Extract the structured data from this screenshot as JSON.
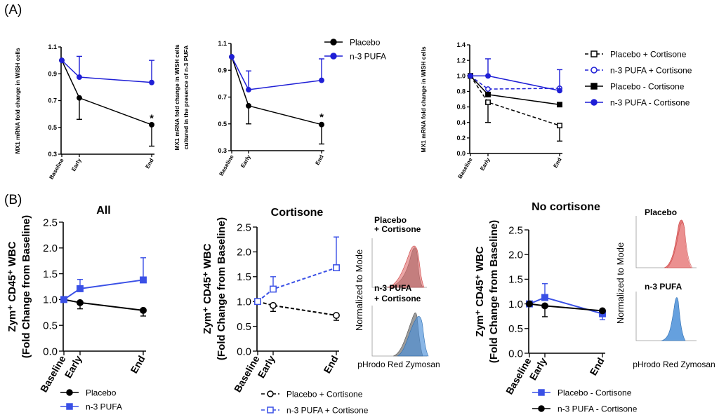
{
  "panel_labels": {
    "a": "(A)",
    "b": "(B)"
  },
  "colors": {
    "placebo": "#000000",
    "pufa": "#1f1fd6",
    "pufa_light": "#3a50e6",
    "hist_red": "#e06a6a",
    "hist_grey": "#8a8a8a",
    "hist_blue": "#4a8fd8"
  },
  "chart_data": [
    {
      "id": "A1",
      "type": "line",
      "ylabel": "MX1 mRNA fold change in WISH cells",
      "categories": [
        "Baseline",
        "Early",
        "End"
      ],
      "ylim": [
        0.3,
        1.1
      ],
      "yticks": [
        "0.3",
        "0.5",
        "0.7",
        "0.9",
        "1.1"
      ],
      "series": [
        {
          "name": "",
          "color": "#000000",
          "marker": "circle",
          "fill": true,
          "dashed": false,
          "values": [
            1.0,
            0.72,
            0.52
          ],
          "err_hi": [
            null,
            null,
            null
          ],
          "err_lo": [
            null,
            0.56,
            0.36
          ]
        },
        {
          "name": "",
          "color": "#1f1fd6",
          "marker": "circle",
          "fill": true,
          "dashed": false,
          "values": [
            1.0,
            0.875,
            0.835
          ],
          "err_hi": [
            null,
            1.03,
            1.0
          ],
          "err_lo": [
            null,
            null,
            null
          ]
        }
      ],
      "annotations": [
        {
          "text": "*",
          "cat": 2,
          "y": 0.575
        }
      ]
    },
    {
      "id": "A2",
      "type": "line",
      "ylabel": "MX1 mRNA fold change in WISH cells cultured in the presence of n-3 PUFA",
      "categories": [
        "Baseline",
        "Early",
        "End"
      ],
      "ylim": [
        0.3,
        1.1
      ],
      "yticks": [
        "0.3",
        "0.5",
        "0.7",
        "0.9",
        "1.1"
      ],
      "series": [
        {
          "name": "Placebo",
          "color": "#000000",
          "marker": "circle",
          "fill": true,
          "dashed": false,
          "values": [
            1.0,
            0.635,
            0.495
          ],
          "err_hi": [
            null,
            null,
            null
          ],
          "err_lo": [
            null,
            0.5,
            0.35
          ]
        },
        {
          "name": "n-3 PUFA",
          "color": "#1f1fd6",
          "marker": "circle",
          "fill": true,
          "dashed": false,
          "values": [
            1.0,
            0.755,
            0.825
          ],
          "err_hi": [
            null,
            0.895,
            0.985
          ],
          "err_lo": [
            null,
            null,
            null
          ]
        }
      ],
      "annotations": [
        {
          "text": "*",
          "cat": 2,
          "y": 0.555
        }
      ]
    },
    {
      "id": "A3",
      "type": "line",
      "ylabel": "MX1 mRNA fold change in WISH cells",
      "categories": [
        "Baseline",
        "Early",
        "End"
      ],
      "ylim": [
        0.0,
        1.4
      ],
      "yticks": [
        "0.0",
        "0.2",
        "0.4",
        "0.6",
        "0.8",
        "1.0",
        "1.2",
        "1.4"
      ],
      "series": [
        {
          "name": "Placebo + Cortisone",
          "color": "#000000",
          "marker": "square",
          "fill": false,
          "dashed": true,
          "values": [
            1.0,
            0.66,
            0.36
          ],
          "err_hi": [
            null,
            null,
            null
          ],
          "err_lo": [
            null,
            0.4,
            0.16
          ]
        },
        {
          "name": "n-3 PUFA + Cortisone",
          "color": "#1f1fd6",
          "marker": "circle",
          "fill": false,
          "dashed": true,
          "values": [
            1.0,
            0.83,
            0.84
          ],
          "err_hi": [
            null,
            null,
            null
          ],
          "err_lo": [
            null,
            null,
            null
          ]
        },
        {
          "name": "Placebo - Cortisone",
          "color": "#000000",
          "marker": "square",
          "fill": true,
          "dashed": false,
          "values": [
            1.0,
            0.76,
            0.63
          ],
          "err_hi": [
            null,
            null,
            null
          ],
          "err_lo": [
            null,
            null,
            null
          ]
        },
        {
          "name": "n-3 PUFA - Cortisone",
          "color": "#1f1fd6",
          "marker": "circle",
          "fill": true,
          "dashed": false,
          "values": [
            1.0,
            1.0,
            0.81
          ],
          "err_hi": [
            null,
            1.22,
            1.08
          ],
          "err_lo": [
            null,
            null,
            null
          ]
        }
      ],
      "annotations": []
    },
    {
      "id": "B1",
      "type": "line",
      "title": "All",
      "ylabel": "Zym⁺ CD45⁺ WBC (Fold Change from  Baseline)",
      "categories": [
        "Baseline",
        "Early",
        "End"
      ],
      "ylim": [
        0.0,
        2.5
      ],
      "yticks": [
        "0.0",
        "0.5",
        "1.0",
        "1.5",
        "2.0",
        "2.5"
      ],
      "series": [
        {
          "name": "Placebo",
          "color": "#000000",
          "marker": "circle",
          "fill": true,
          "dashed": false,
          "values": [
            1.0,
            0.94,
            0.79
          ],
          "err_hi": [
            null,
            null,
            null
          ],
          "err_lo": [
            null,
            0.82,
            0.68
          ]
        },
        {
          "name": "n-3 PUFA",
          "color": "#3a50e6",
          "marker": "square",
          "fill": true,
          "dashed": false,
          "values": [
            1.0,
            1.21,
            1.38
          ],
          "err_hi": [
            null,
            1.39,
            1.81
          ],
          "err_lo": [
            null,
            null,
            null
          ]
        }
      ],
      "annotations": []
    },
    {
      "id": "B2",
      "type": "line",
      "title": "Cortisone",
      "ylabel": "Zym⁺ CD45⁺ WBC (Fold Change from  Baseline)",
      "categories": [
        "Baseline",
        "Early",
        "End"
      ],
      "ylim": [
        0.0,
        2.5
      ],
      "yticks": [
        "0.0",
        "0.5",
        "1.0",
        "1.5",
        "2.0",
        "2.5"
      ],
      "series": [
        {
          "name": "Placebo + Cortisone",
          "color": "#000000",
          "marker": "circle",
          "fill": false,
          "dashed": true,
          "values": [
            1.0,
            0.92,
            0.72
          ],
          "err_hi": [
            null,
            null,
            null
          ],
          "err_lo": [
            null,
            0.8,
            0.62
          ]
        },
        {
          "name": "n-3 PUFA + Cortisone",
          "color": "#3a50e6",
          "marker": "square",
          "fill": false,
          "dashed": true,
          "values": [
            1.0,
            1.25,
            1.68
          ],
          "err_hi": [
            null,
            1.5,
            2.3
          ],
          "err_lo": [
            null,
            null,
            null
          ]
        }
      ],
      "annotations": []
    },
    {
      "id": "B3",
      "type": "line",
      "title": "No cortisone",
      "ylabel": "Zym⁺ CD45⁺ WBC (Fold Change from  Baseline)",
      "categories": [
        "Baseline",
        "Early",
        "End"
      ],
      "ylim": [
        0.0,
        2.5
      ],
      "yticks": [
        "0.0",
        "0.5",
        "1.0",
        "1.5",
        "2.0",
        "2.5"
      ],
      "series": [
        {
          "name": "Placebo - Cortisone",
          "color": "#3a50e6",
          "marker": "square",
          "fill": true,
          "dashed": false,
          "values": [
            1.0,
            1.13,
            0.8
          ],
          "err_hi": [
            null,
            1.41,
            null
          ],
          "err_lo": [
            null,
            null,
            0.68
          ]
        },
        {
          "name": "n-3 PUFA - Cortisone",
          "color": "#000000",
          "marker": "circle",
          "fill": true,
          "dashed": false,
          "values": [
            1.0,
            0.96,
            0.86
          ],
          "err_hi": [
            null,
            null,
            null
          ],
          "err_lo": [
            null,
            0.74,
            null
          ]
        }
      ],
      "annotations": []
    }
  ],
  "histograms": {
    "cortisone": {
      "top_label": "Placebo\n+ Cortisone",
      "bottom_label": "n-3 PUFA\n+ Cortisone",
      "ylabel": "Normalized to Mode",
      "xlabel": "pHrodo Red Zymosan"
    },
    "no_cortisone": {
      "top_label": "Placebo",
      "bottom_label": "n-3 PUFA",
      "ylabel": "Normalized to Mode",
      "xlabel": "pHrodo Red Zymosan"
    }
  }
}
